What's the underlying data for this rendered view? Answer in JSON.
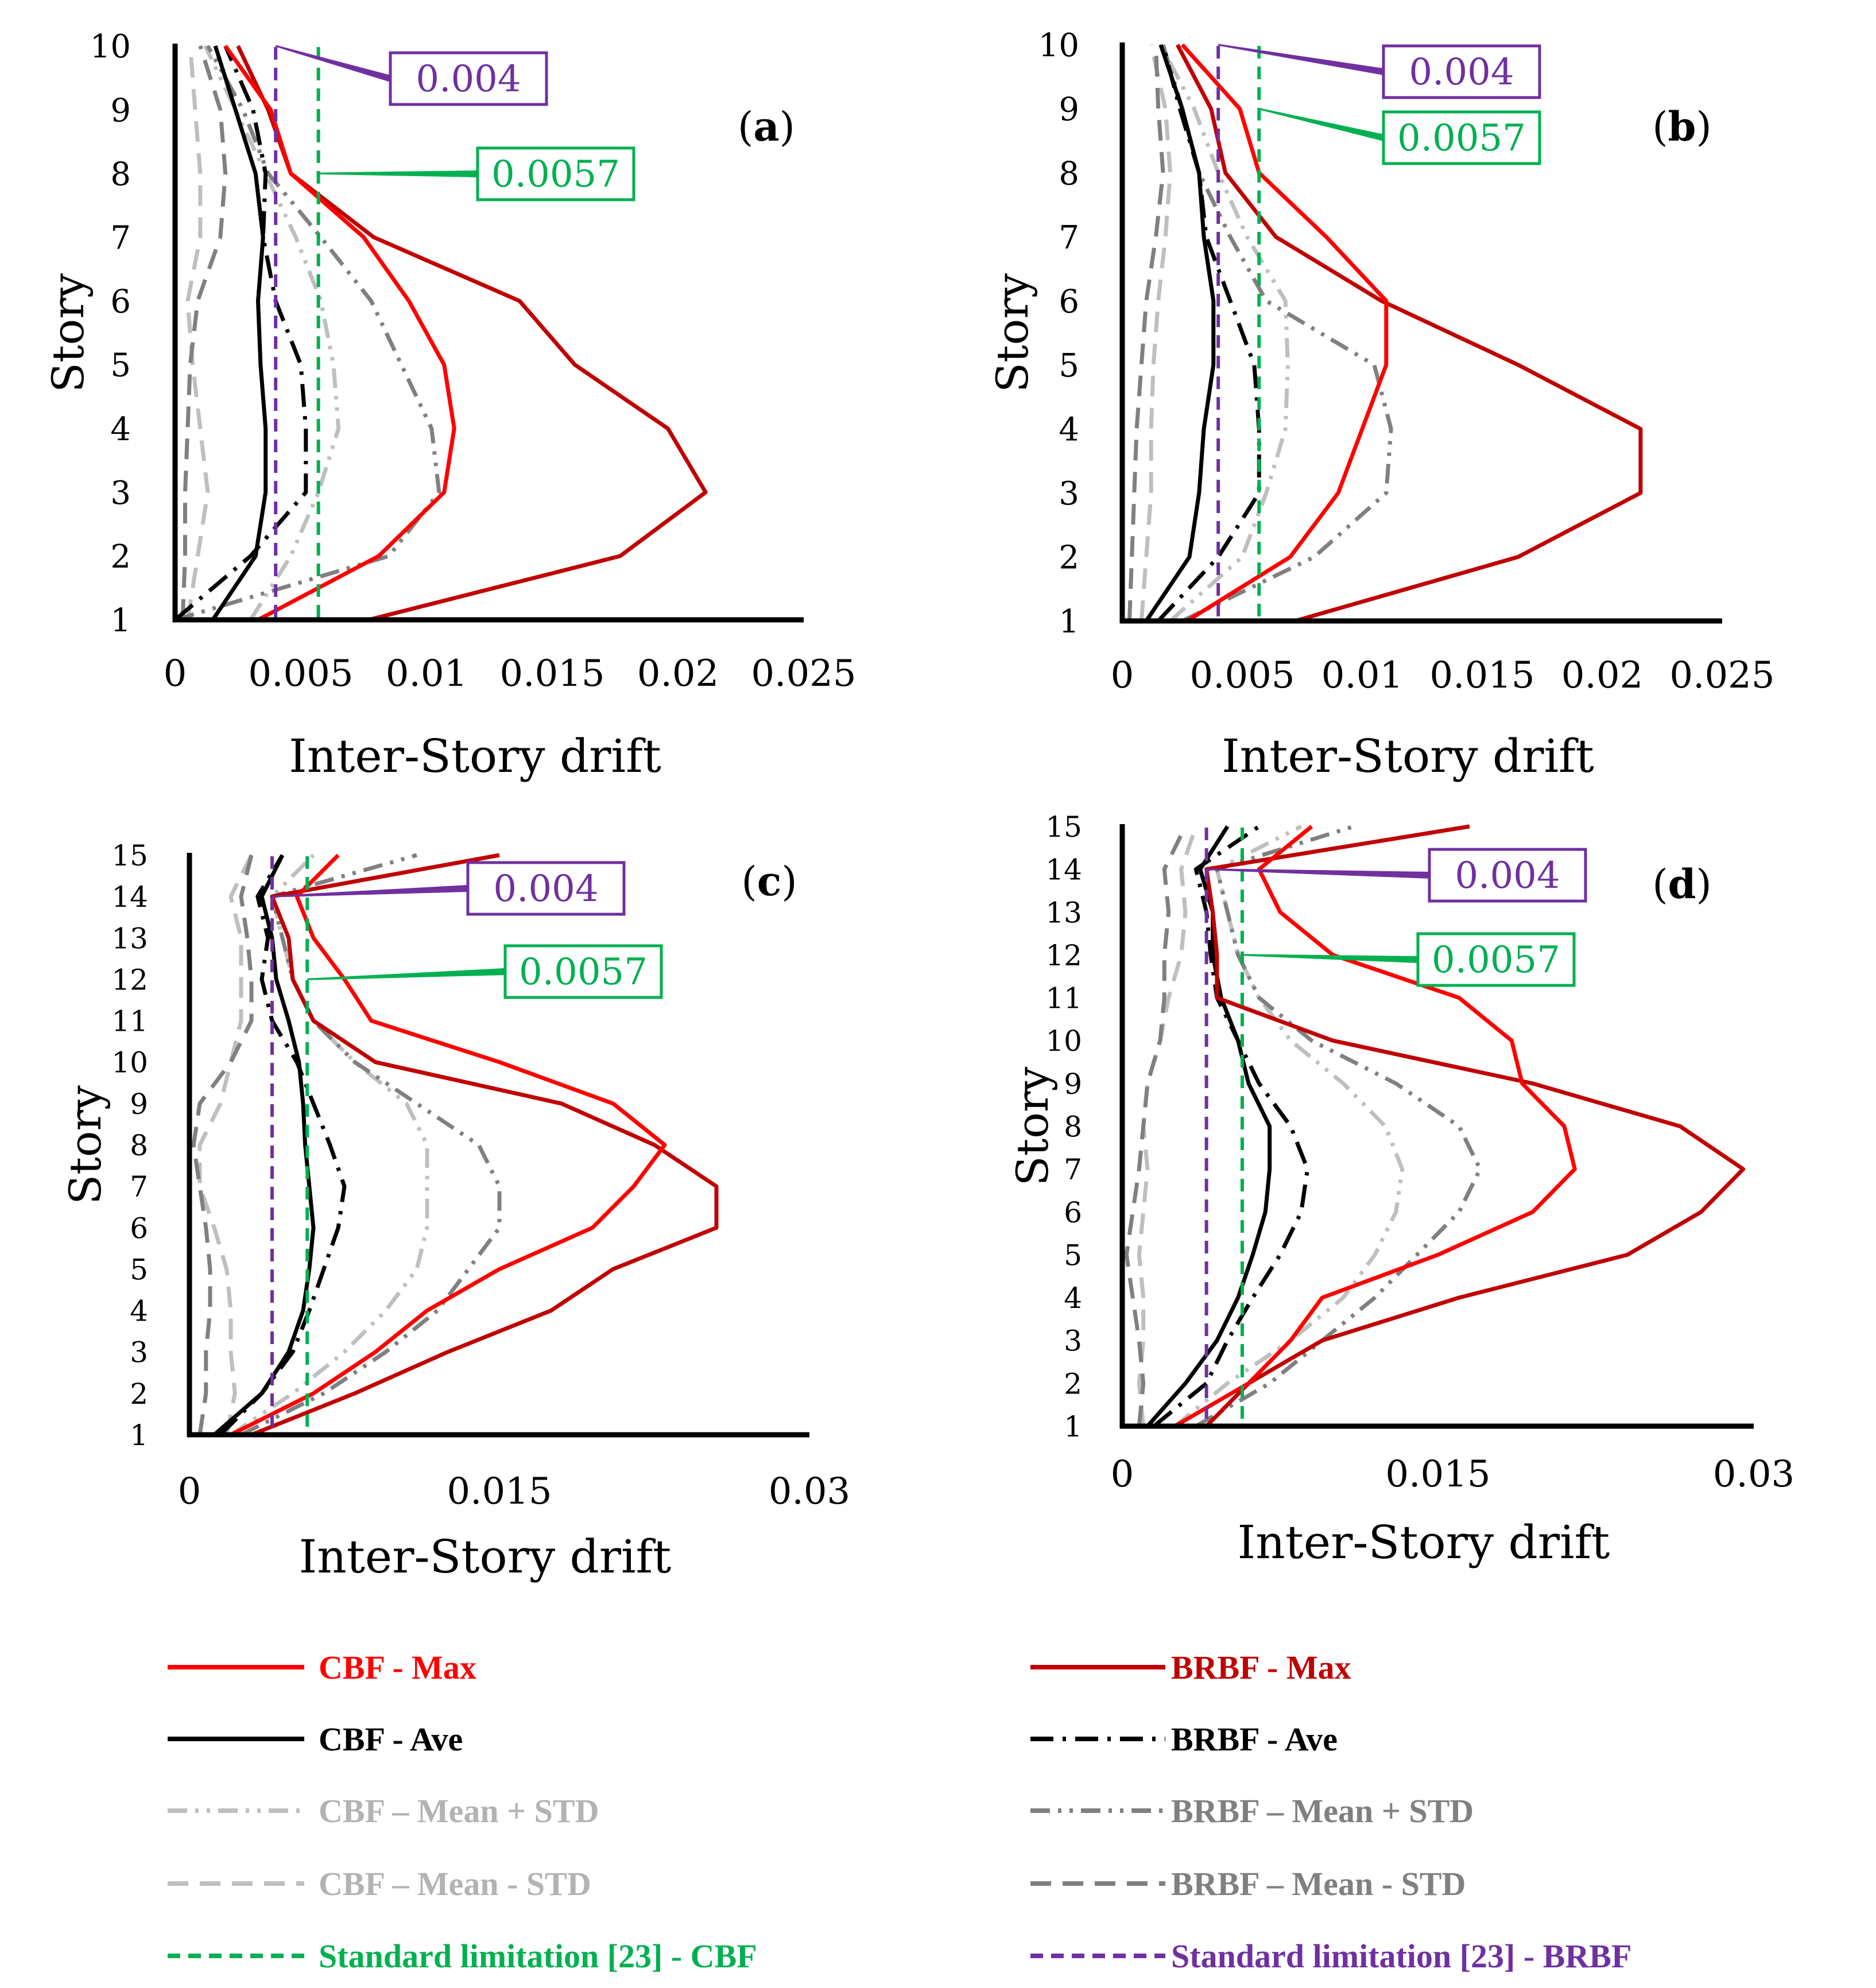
{
  "chart_data": [
    {
      "type": "line",
      "panel": "(a)",
      "xlabel": "Inter-Story drift",
      "ylabel": "Story",
      "xlim": [
        0,
        0.025
      ],
      "ylim": [
        1,
        10
      ],
      "xticks": [
        "0",
        "0.005",
        "0.01",
        "0.015",
        "0.02",
        "0.025"
      ],
      "yticks": [
        "1",
        "2",
        "3",
        "4",
        "5",
        "6",
        "7",
        "8",
        "9",
        "10"
      ],
      "stories": [
        1,
        2,
        3,
        4,
        5,
        6,
        7,
        8,
        9,
        10
      ],
      "series": [
        {
          "name": "CBF - Max",
          "key": "cbf_max",
          "values": [
            0.0033,
            0.0081,
            0.0107,
            0.0111,
            0.0107,
            0.0093,
            0.0075,
            0.0046,
            0.0038,
            0.002
          ]
        },
        {
          "name": "BRBF - Max",
          "key": "brbf_max",
          "values": [
            0.0077,
            0.0177,
            0.0211,
            0.0196,
            0.0159,
            0.0137,
            0.0079,
            0.0046,
            0.0037,
            0.0025
          ]
        },
        {
          "name": "CBF - Ave",
          "key": "cbf_ave",
          "values": [
            0.0015,
            0.0032,
            0.0036,
            0.0036,
            0.0034,
            0.0033,
            0.0035,
            0.0032,
            0.0024,
            0.0016
          ]
        },
        {
          "name": "BRBF - Ave",
          "key": "brbf_ave",
          "values": [
            0.0,
            0.003,
            0.0052,
            0.0052,
            0.005,
            0.004,
            0.0035,
            0.0036,
            0.0031,
            0.002
          ]
        },
        {
          "name": "CBF – Mean + STD",
          "key": "cbf_mps",
          "values": [
            0.003,
            0.0046,
            0.0057,
            0.0065,
            0.0063,
            0.0058,
            0.0048,
            0.0036,
            0.0024,
            0.0012
          ]
        },
        {
          "name": "BRBF – Mean + STD",
          "key": "brbf_mps",
          "values": [
            0.0,
            0.0085,
            0.0105,
            0.0102,
            0.009,
            0.0078,
            0.0058,
            0.0037,
            0.0027,
            0.0013
          ]
        },
        {
          "name": "CBF – Mean - STD",
          "key": "cbf_mms",
          "values": [
            0.0005,
            0.0009,
            0.0013,
            0.001,
            0.0007,
            0.0005,
            0.001,
            0.001,
            0.0008,
            0.0006
          ]
        },
        {
          "name": "BRBF – Mean - STD",
          "key": "brbf_mms",
          "values": [
            0.0003,
            0.0004,
            0.0004,
            0.0005,
            0.0006,
            0.0009,
            0.0018,
            0.002,
            0.0018,
            0.001
          ]
        }
      ],
      "limits": [
        {
          "key": "brbf_limit",
          "value": 0.004,
          "label": "0.004"
        },
        {
          "key": "cbf_limit",
          "value": 0.0057,
          "label": "0.0057"
        }
      ]
    },
    {
      "type": "line",
      "panel": "(b)",
      "xlabel": "Inter-Story drift",
      "ylabel": "Story",
      "xlim": [
        0,
        0.025
      ],
      "ylim": [
        1,
        10
      ],
      "xticks": [
        "0",
        "0.005",
        "0.01",
        "0.015",
        "0.02",
        "0.025"
      ],
      "yticks": [
        "1",
        "2",
        "3",
        "4",
        "5",
        "6",
        "7",
        "8",
        "9",
        "10"
      ],
      "stories": [
        1,
        2,
        3,
        4,
        5,
        6,
        7,
        8,
        9,
        10
      ],
      "series": [
        {
          "name": "CBF - Max",
          "key": "cbf_max",
          "values": [
            0.0027,
            0.007,
            0.009,
            0.01,
            0.011,
            0.011,
            0.0085,
            0.0057,
            0.0049,
            0.0025
          ]
        },
        {
          "name": "BRBF - Max",
          "key": "brbf_max",
          "values": [
            0.0072,
            0.0165,
            0.0216,
            0.0216,
            0.0165,
            0.0108,
            0.0064,
            0.0043,
            0.0037,
            0.0023
          ]
        },
        {
          "name": "CBF - Ave",
          "key": "cbf_ave",
          "values": [
            0.001,
            0.0028,
            0.0032,
            0.0034,
            0.0038,
            0.0038,
            0.0034,
            0.0032,
            0.0025,
            0.0016
          ]
        },
        {
          "name": "BRBF - Ave",
          "key": "brbf_ave",
          "values": [
            0.0015,
            0.004,
            0.0057,
            0.0057,
            0.0055,
            0.0045,
            0.0035,
            0.0032,
            0.0024,
            0.0017
          ]
        },
        {
          "name": "CBF – Mean + STD",
          "key": "cbf_mps",
          "values": [
            0.002,
            0.005,
            0.006,
            0.0068,
            0.0069,
            0.0068,
            0.0052,
            0.004,
            0.003,
            0.0016
          ]
        },
        {
          "name": "BRBF – Mean + STD",
          "key": "brbf_mps",
          "values": [
            0.0025,
            0.008,
            0.011,
            0.0112,
            0.0105,
            0.006,
            0.0045,
            0.0032,
            0.0025,
            0.0017
          ]
        },
        {
          "name": "CBF – Mean - STD",
          "key": "cbf_mms",
          "values": [
            0.0008,
            0.001,
            0.0012,
            0.0012,
            0.0013,
            0.0015,
            0.0018,
            0.002,
            0.0018,
            0.0012
          ]
        },
        {
          "name": "BRBF – Mean - STD",
          "key": "brbf_mms",
          "values": [
            0.0003,
            0.0004,
            0.0005,
            0.0006,
            0.0008,
            0.001,
            0.0014,
            0.0017,
            0.0015,
            0.0014
          ]
        }
      ],
      "limits": [
        {
          "key": "brbf_limit",
          "value": 0.004,
          "label": "0.004"
        },
        {
          "key": "cbf_limit",
          "value": 0.0057,
          "label": "0.0057"
        }
      ]
    },
    {
      "type": "line",
      "panel": "(c)",
      "xlabel": "Inter-Story drift",
      "ylabel": "Story",
      "xlim": [
        0,
        0.03
      ],
      "ylim": [
        1,
        15
      ],
      "xticks": [
        "0",
        "0.015",
        "0.03"
      ],
      "yticks": [
        "1",
        "2",
        "3",
        "4",
        "5",
        "6",
        "7",
        "8",
        "9",
        "10",
        "11",
        "12",
        "13",
        "14",
        "15"
      ],
      "stories": [
        1,
        2,
        3,
        4,
        5,
        6,
        7,
        8,
        9,
        10,
        11,
        12,
        13,
        14,
        15
      ],
      "series": [
        {
          "name": "CBF - Max",
          "key": "cbf_max",
          "values": [
            0.002,
            0.006,
            0.009,
            0.0115,
            0.015,
            0.0195,
            0.0215,
            0.023,
            0.0205,
            0.015,
            0.0088,
            0.0075,
            0.006,
            0.0052,
            0.0072
          ]
        },
        {
          "name": "BRBF - Max",
          "key": "brbf_max",
          "values": [
            0.003,
            0.008,
            0.0125,
            0.0175,
            0.0205,
            0.0255,
            0.0255,
            0.0225,
            0.018,
            0.009,
            0.006,
            0.005,
            0.0048,
            0.004,
            0.015
          ]
        },
        {
          "name": "CBF - Ave",
          "key": "cbf_ave",
          "values": [
            0.0012,
            0.0035,
            0.0048,
            0.0055,
            0.0058,
            0.006,
            0.0058,
            0.0056,
            0.0055,
            0.0053,
            0.0048,
            0.0042,
            0.004,
            0.0035,
            0.0045
          ]
        },
        {
          "name": "BRBF - Ave",
          "key": "brbf_ave",
          "values": [
            0.0015,
            0.0035,
            0.005,
            0.0058,
            0.0065,
            0.0072,
            0.0075,
            0.0068,
            0.006,
            0.0052,
            0.004,
            0.0035,
            0.0038,
            0.0033,
            0.0045
          ]
        },
        {
          "name": "CBF – Mean + STD",
          "key": "cbf_mps",
          "values": [
            0.002,
            0.005,
            0.0075,
            0.0095,
            0.011,
            0.0115,
            0.0115,
            0.0115,
            0.0105,
            0.008,
            0.006,
            0.005,
            0.0045,
            0.004,
            0.006
          ]
        },
        {
          "name": "BRBF – Mean + STD",
          "key": "brbf_mps",
          "values": [
            0.0025,
            0.0065,
            0.0095,
            0.012,
            0.0135,
            0.015,
            0.015,
            0.014,
            0.011,
            0.008,
            0.006,
            0.005,
            0.0045,
            0.004,
            0.011
          ]
        },
        {
          "name": "CBF – Mean - STD",
          "key": "cbf_mms",
          "values": [
            0.0018,
            0.0022,
            0.002,
            0.002,
            0.0018,
            0.0012,
            0.0005,
            0.0005,
            0.0015,
            0.002,
            0.0025,
            0.0025,
            0.0025,
            0.002,
            0.003
          ]
        },
        {
          "name": "BRBF – Mean - STD",
          "key": "brbf_mms",
          "values": [
            0.0005,
            0.0008,
            0.0008,
            0.001,
            0.001,
            0.0008,
            0.0005,
            0.0002,
            0.0005,
            0.002,
            0.003,
            0.003,
            0.0028,
            0.0025,
            0.003
          ]
        }
      ],
      "limits": [
        {
          "key": "brbf_limit",
          "value": 0.004,
          "label": "0.004"
        },
        {
          "key": "cbf_limit",
          "value": 0.0057,
          "label": "0.0057"
        }
      ]
    },
    {
      "type": "line",
      "panel": "(d)",
      "xlabel": "Inter-Story drift",
      "ylabel": "Story",
      "xlim": [
        0,
        0.03
      ],
      "ylim": [
        1,
        15
      ],
      "xticks": [
        "0",
        "0.015",
        "0.03"
      ],
      "yticks": [
        "1",
        "2",
        "3",
        "4",
        "5",
        "6",
        "7",
        "8",
        "9",
        "10",
        "11",
        "12",
        "13",
        "14",
        "15"
      ],
      "stories": [
        1,
        2,
        3,
        4,
        5,
        6,
        7,
        8,
        9,
        10,
        11,
        12,
        13,
        14,
        15
      ],
      "series": [
        {
          "name": "CBF - Max",
          "key": "cbf_max",
          "values": [
            0.0025,
            0.006,
            0.008,
            0.0095,
            0.015,
            0.0195,
            0.0215,
            0.021,
            0.019,
            0.0185,
            0.016,
            0.01,
            0.0075,
            0.0065,
            0.009
          ]
        },
        {
          "name": "BRBF - Max",
          "key": "brbf_max",
          "values": [
            0.004,
            0.006,
            0.0095,
            0.016,
            0.024,
            0.0275,
            0.0295,
            0.0265,
            0.0195,
            0.01,
            0.0045,
            0.0045,
            0.0043,
            0.004,
            0.0165
          ]
        },
        {
          "name": "CBF - Ave",
          "key": "cbf_ave",
          "values": [
            0.0012,
            0.003,
            0.0045,
            0.0055,
            0.0062,
            0.0068,
            0.007,
            0.007,
            0.006,
            0.0055,
            0.0047,
            0.0043,
            0.0043,
            0.0037,
            0.005
          ]
        },
        {
          "name": "BRBF - Ave",
          "key": "brbf_ave",
          "values": [
            0.0015,
            0.004,
            0.005,
            0.0062,
            0.0075,
            0.0085,
            0.0088,
            0.008,
            0.0065,
            0.0055,
            0.0045,
            0.0042,
            0.004,
            0.0035,
            0.0065
          ]
        },
        {
          "name": "CBF – Mean + STD",
          "key": "cbf_mps",
          "values": [
            0.0025,
            0.005,
            0.008,
            0.0105,
            0.012,
            0.013,
            0.0133,
            0.0125,
            0.0105,
            0.008,
            0.0065,
            0.0055,
            0.005,
            0.0045,
            0.0085
          ]
        },
        {
          "name": "BRBF – Mean + STD",
          "key": "brbf_mps",
          "values": [
            0.0035,
            0.007,
            0.0095,
            0.012,
            0.014,
            0.016,
            0.017,
            0.016,
            0.013,
            0.009,
            0.0065,
            0.0055,
            0.005,
            0.0045,
            0.011
          ]
        },
        {
          "name": "CBF – Mean - STD",
          "key": "cbf_mms",
          "values": [
            0.001,
            0.0008,
            0.001,
            0.001,
            0.0008,
            0.001,
            0.0012,
            0.001,
            0.0012,
            0.0018,
            0.0022,
            0.0028,
            0.003,
            0.0028,
            0.0035
          ]
        },
        {
          "name": "BRBF – Mean - STD",
          "key": "brbf_mms",
          "values": [
            0.0008,
            0.001,
            0.0008,
            0.0005,
            0.0002,
            0.0005,
            0.0008,
            0.001,
            0.0012,
            0.0018,
            0.002,
            0.002,
            0.0022,
            0.002,
            0.003
          ]
        }
      ],
      "limits": [
        {
          "key": "brbf_limit",
          "value": 0.004,
          "label": "0.004"
        },
        {
          "key": "cbf_limit",
          "value": 0.0057,
          "label": "0.0057"
        }
      ]
    }
  ],
  "legend": [
    {
      "key": "cbf_max",
      "label": "CBF - Max"
    },
    {
      "key": "brbf_max",
      "label": "BRBF - Max"
    },
    {
      "key": "cbf_ave",
      "label": "CBF - Ave"
    },
    {
      "key": "brbf_ave",
      "label": "BRBF - Ave"
    },
    {
      "key": "cbf_mps",
      "label": "CBF – Mean + STD"
    },
    {
      "key": "brbf_mps",
      "label": "BRBF – Mean + STD"
    },
    {
      "key": "cbf_mms",
      "label": "CBF – Mean - STD"
    },
    {
      "key": "brbf_mms",
      "label": "BRBF – Mean - STD"
    },
    {
      "key": "cbf_limit",
      "label": "Standard limitation [23] - CBF"
    },
    {
      "key": "brbf_limit",
      "label": "Standard limitation [23] - BRBF"
    }
  ],
  "styles": {
    "cbf_max": {
      "color": "#ff0000",
      "dash": ""
    },
    "brbf_max": {
      "color": "#c00000",
      "dash": ""
    },
    "cbf_ave": {
      "color": "#000000",
      "dash": ""
    },
    "brbf_ave": {
      "color": "#000000",
      "dash": "40 16 6 16"
    },
    "cbf_mps": {
      "color": "#bfbfbf",
      "dash": "34 14 6 14 6 14"
    },
    "brbf_mps": {
      "color": "#808080",
      "dash": "34 14 6 14 6 14"
    },
    "cbf_mms": {
      "color": "#bfbfbf",
      "dash": "36 20"
    },
    "brbf_mms": {
      "color": "#808080",
      "dash": "36 20"
    },
    "cbf_limit": {
      "color": "#00b050",
      "dash": "22 14"
    },
    "brbf_limit": {
      "color": "#7030a0",
      "dash": "22 14"
    }
  }
}
